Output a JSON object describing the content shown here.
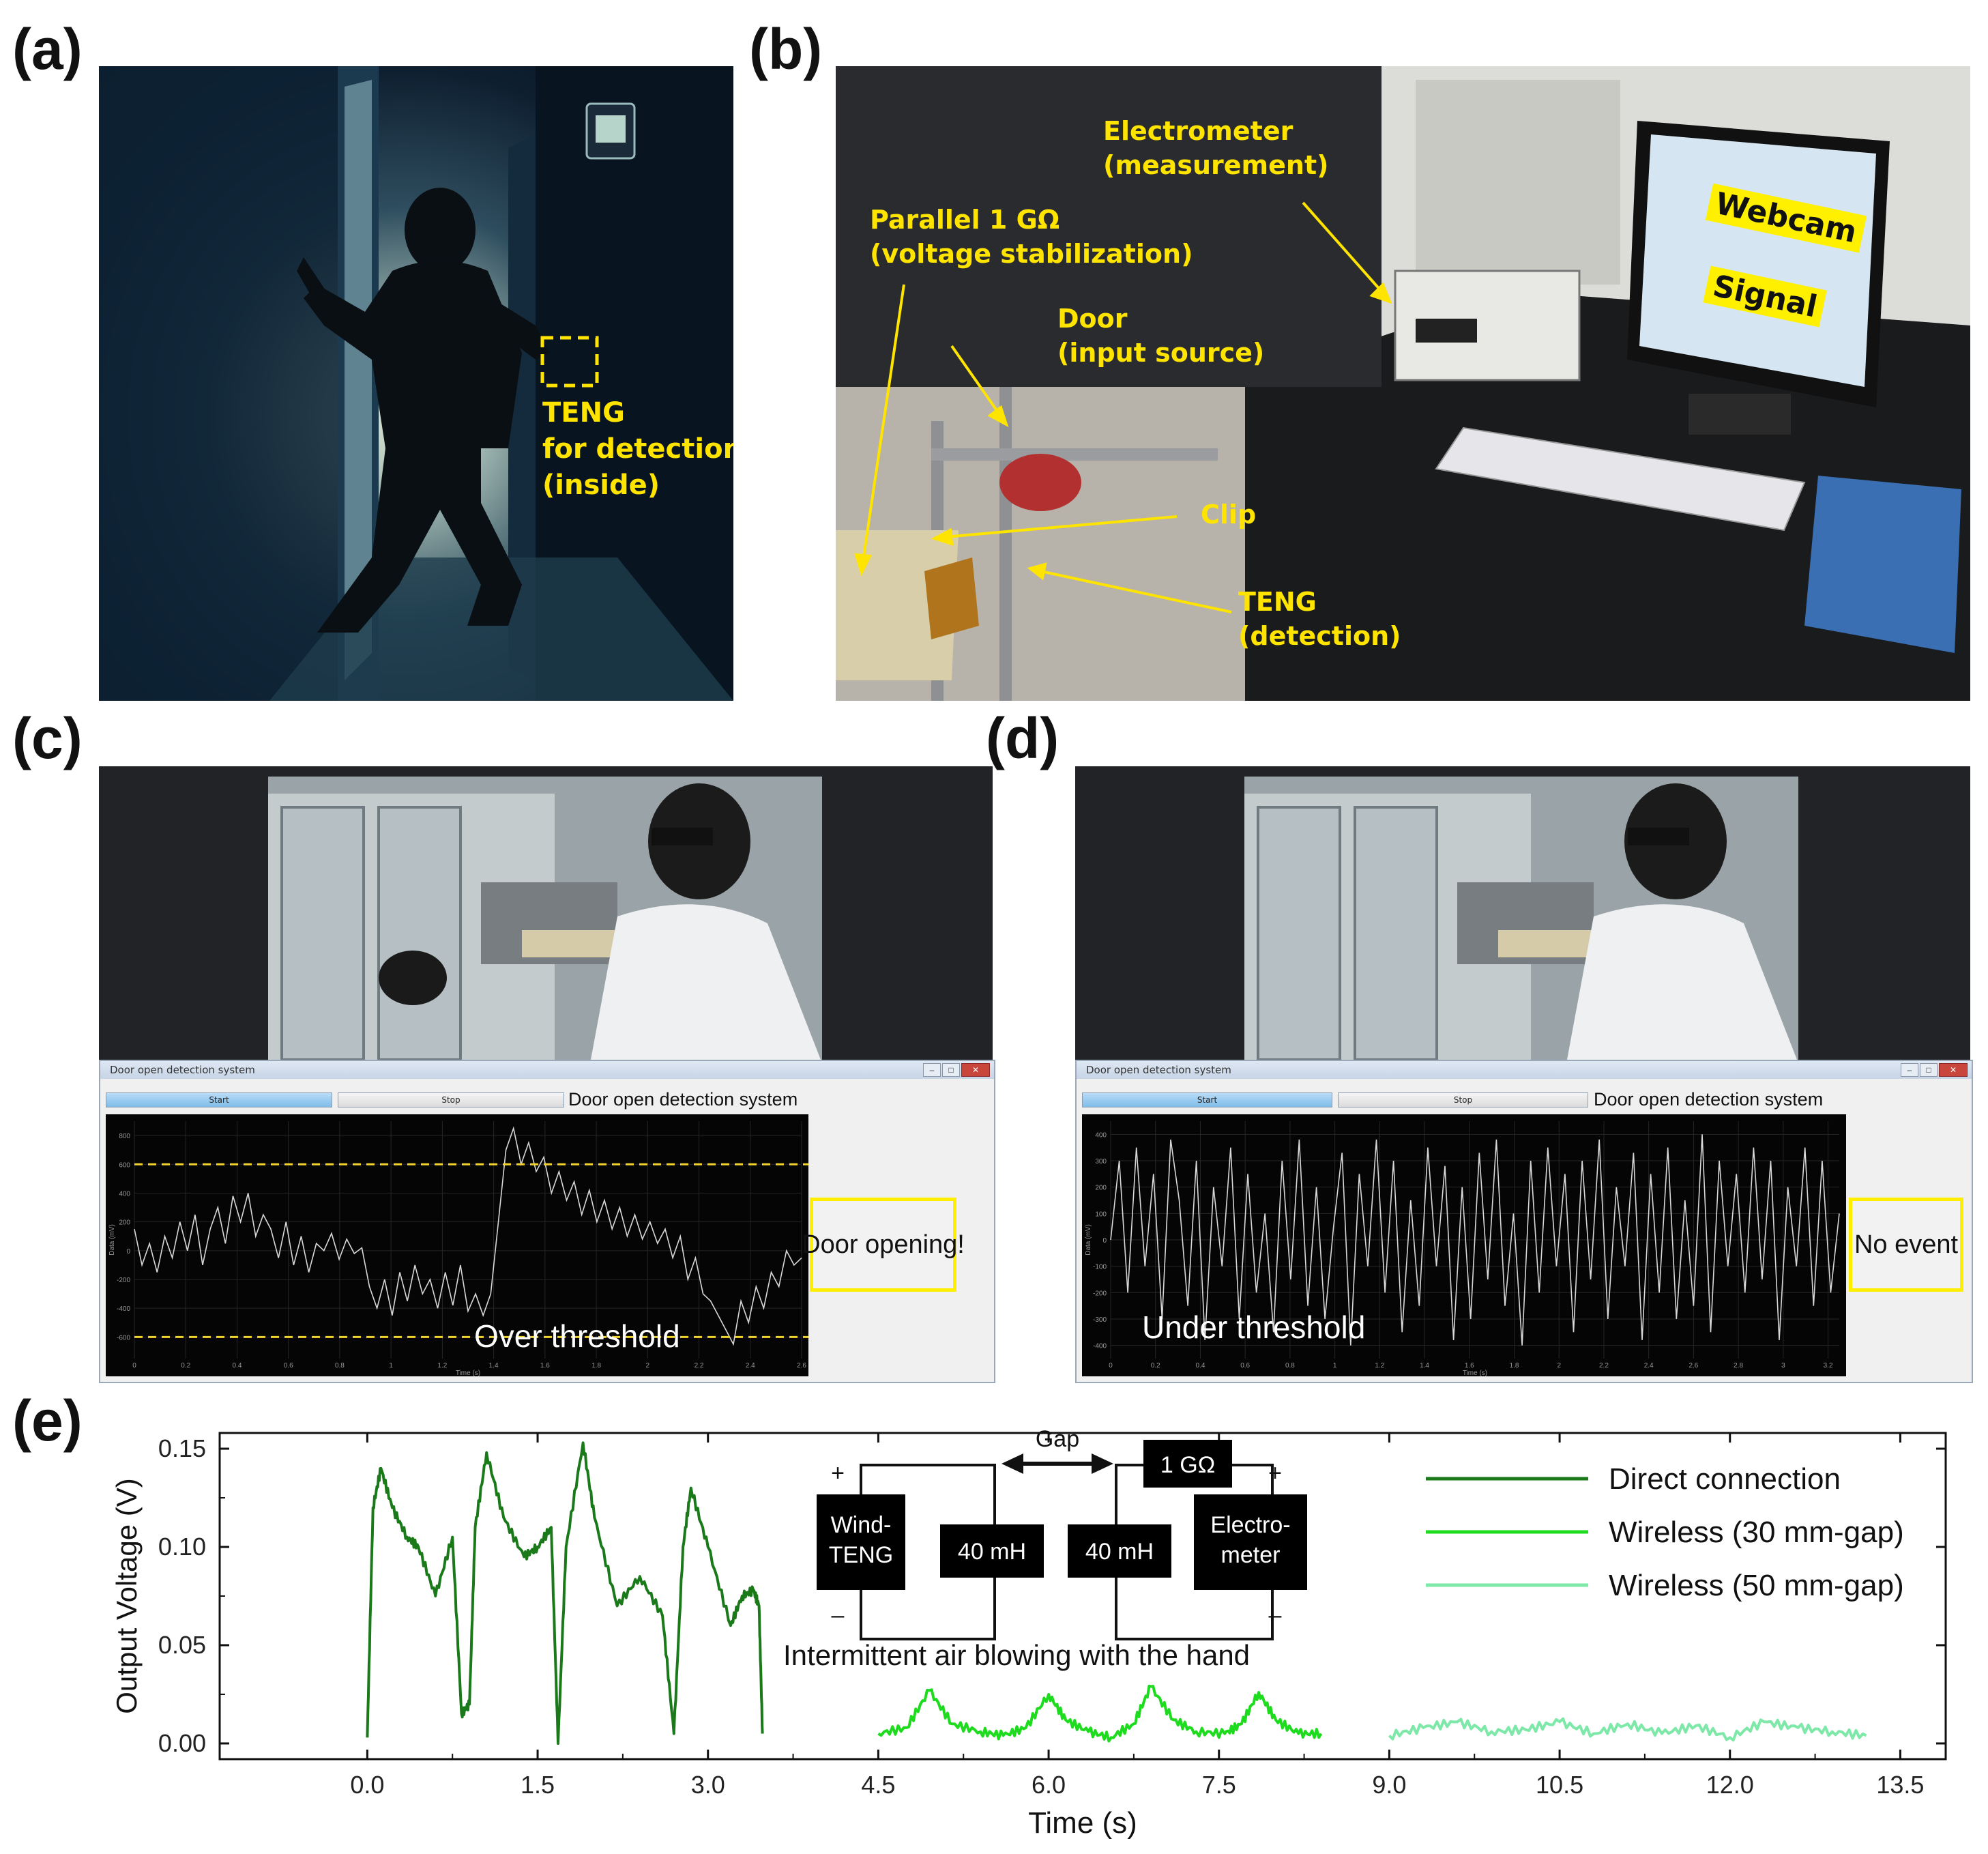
{
  "panel_labels": {
    "a": "(a)",
    "b": "(b)",
    "c": "(c)",
    "d": "(d)",
    "e": "(e)"
  },
  "panel_a": {
    "annotation_lines": [
      "TENG",
      "for detection",
      "(inside)"
    ],
    "annotation_color": "#ffe400"
  },
  "panel_b": {
    "electrometer": [
      "Electrometer",
      "(measurement)"
    ],
    "resistor": [
      "Parallel 1 GΩ",
      "(voltage stabilization)"
    ],
    "door": [
      "Door",
      "(input source)"
    ],
    "clip": "Clip",
    "teng": [
      "TENG",
      "(detection)"
    ],
    "screen_labels": {
      "webcam": "Webcam",
      "signal": "Signal"
    },
    "label_color": "#ffe400"
  },
  "panel_c": {
    "window_title": "Door open detection system",
    "window_buttons": [
      "–",
      "□",
      "✕"
    ],
    "start_label": "Start",
    "stop_label": "Stop",
    "app_title": "Door open detection system",
    "status": "Door opening!",
    "threshold_text": "Over threshold",
    "y_axis_label": "Data (mV)",
    "x_axis_label": "Time (s)",
    "x_ticks": [
      "0",
      "0.2",
      "0.4",
      "0.6",
      "0.8",
      "1",
      "1.2",
      "1.4",
      "1.6",
      "1.8",
      "2",
      "2.2",
      "2.4",
      "2.6"
    ],
    "y_ticks": [
      "800",
      "600",
      "400",
      "200",
      "0",
      "-200",
      "-400",
      "-600"
    ],
    "threshold_mv": [
      600,
      -600
    ],
    "signal_mv": [
      150,
      -100,
      50,
      -150,
      100,
      -50,
      200,
      0,
      250,
      -100,
      150,
      300,
      50,
      380,
      200,
      400,
      100,
      250,
      150,
      -50,
      200,
      -100,
      100,
      -150,
      50,
      0,
      120,
      -60,
      80,
      -20,
      20,
      -250,
      -400,
      -200,
      -450,
      -150,
      -350,
      -100,
      -300,
      -200,
      -400,
      -150,
      -380,
      -100,
      -420,
      -300,
      -450,
      -300,
      200,
      700,
      850,
      600,
      750,
      550,
      650,
      400,
      550,
      350,
      480,
      250,
      420,
      200,
      350,
      150,
      300,
      100,
      250,
      80,
      200,
      50,
      150,
      -50,
      100,
      -200,
      -50,
      -300,
      -350,
      -450,
      -550,
      -650,
      -350,
      -500,
      -250,
      -400,
      -150,
      -250,
      0,
      -100,
      -50
    ]
  },
  "panel_d": {
    "window_title": "Door open detection system",
    "window_buttons": [
      "–",
      "□",
      "✕"
    ],
    "start_label": "Start",
    "stop_label": "Stop",
    "app_title": "Door open detection system",
    "status": "No event",
    "threshold_text": "Under threshold",
    "y_axis_label": "Data (mV)",
    "x_axis_label": "Time (s)",
    "x_ticks": [
      "0",
      "0.2",
      "0.4",
      "0.6",
      "0.8",
      "1",
      "1.2",
      "1.4",
      "1.6",
      "1.8",
      "2",
      "2.2",
      "2.4",
      "2.6",
      "2.8",
      "3",
      "3.2"
    ],
    "y_ticks": [
      "400",
      "300",
      "200",
      "100",
      "0",
      "-100",
      "-200",
      "-300",
      "-400"
    ],
    "signal_mv": [
      0,
      300,
      -200,
      350,
      -100,
      250,
      -300,
      380,
      150,
      -250,
      300,
      -380,
      200,
      -100,
      350,
      -300,
      250,
      -200,
      100,
      -350,
      300,
      -150,
      380,
      -250,
      200,
      -300,
      50,
      330,
      -400,
      250,
      -100,
      380,
      -200,
      300,
      -350,
      150,
      -250,
      350,
      -100,
      280,
      -380,
      200,
      -300,
      330,
      -150,
      380,
      -250,
      100,
      -400,
      300,
      -200,
      350,
      -100,
      250,
      -350,
      300,
      -150,
      380,
      -300,
      200,
      -100,
      330,
      -380,
      250,
      -200,
      350,
      -300,
      150,
      -250,
      400,
      -350,
      300,
      -100,
      250,
      -200,
      350,
      -150,
      300,
      -380,
      200,
      -100,
      350,
      -250,
      300,
      -200,
      100
    ]
  },
  "chart_data": {
    "type": "line",
    "xlabel": "Time (s)",
    "ylabel": "Output Voltage (V)",
    "xlim": [
      -1.3,
      13.9
    ],
    "ylim": [
      -0.008,
      0.158
    ],
    "x_ticks": [
      "0.0",
      "1.5",
      "3.0",
      "4.5",
      "6.0",
      "7.5",
      "9.0",
      "10.5",
      "12.0",
      "13.5"
    ],
    "y_ticks": [
      "0.00",
      "0.05",
      "0.10",
      "0.15"
    ],
    "legend_position": "top-right",
    "series": [
      {
        "name": "Direct connection",
        "color": "#1a7a1a",
        "points": [
          [
            0,
            0.003
          ],
          [
            0.05,
            0.12
          ],
          [
            0.12,
            0.14
          ],
          [
            0.22,
            0.12
          ],
          [
            0.35,
            0.105
          ],
          [
            0.45,
            0.1
          ],
          [
            0.6,
            0.075
          ],
          [
            0.75,
            0.105
          ],
          [
            0.83,
            0.015
          ],
          [
            0.9,
            0.02
          ],
          [
            0.95,
            0.11
          ],
          [
            1.05,
            0.148
          ],
          [
            1.2,
            0.115
          ],
          [
            1.38,
            0.095
          ],
          [
            1.5,
            0.1
          ],
          [
            1.62,
            0.11
          ],
          [
            1.68,
            0.0
          ],
          [
            1.75,
            0.1
          ],
          [
            1.9,
            0.153
          ],
          [
            2.0,
            0.115
          ],
          [
            2.2,
            0.07
          ],
          [
            2.4,
            0.085
          ],
          [
            2.6,
            0.065
          ],
          [
            2.7,
            0.005
          ],
          [
            2.78,
            0.1
          ],
          [
            2.85,
            0.13
          ],
          [
            3.0,
            0.1
          ],
          [
            3.2,
            0.06
          ],
          [
            3.3,
            0.075
          ],
          [
            3.4,
            0.078
          ],
          [
            3.45,
            0.07
          ],
          [
            3.48,
            0.005
          ]
        ]
      },
      {
        "name": "Wireless (30 mm-gap)",
        "color": "#1ddb1d",
        "points": [
          [
            4.5,
            0.005
          ],
          [
            4.75,
            0.008
          ],
          [
            4.95,
            0.027
          ],
          [
            5.15,
            0.01
          ],
          [
            5.4,
            0.006
          ],
          [
            5.6,
            0.004
          ],
          [
            5.8,
            0.008
          ],
          [
            6.0,
            0.025
          ],
          [
            6.15,
            0.012
          ],
          [
            6.35,
            0.006
          ],
          [
            6.55,
            0.003
          ],
          [
            6.75,
            0.01
          ],
          [
            6.9,
            0.029
          ],
          [
            7.1,
            0.012
          ],
          [
            7.3,
            0.006
          ],
          [
            7.55,
            0.005
          ],
          [
            7.7,
            0.01
          ],
          [
            7.85,
            0.026
          ],
          [
            8.0,
            0.012
          ],
          [
            8.2,
            0.005
          ],
          [
            8.4,
            0.005
          ]
        ]
      },
      {
        "name": "Wireless (50 mm-gap)",
        "color": "#7de8a8",
        "points": [
          [
            9.0,
            0.004
          ],
          [
            9.3,
            0.008
          ],
          [
            9.6,
            0.011
          ],
          [
            9.9,
            0.006
          ],
          [
            10.2,
            0.007
          ],
          [
            10.5,
            0.011
          ],
          [
            10.8,
            0.005
          ],
          [
            11.1,
            0.01
          ],
          [
            11.4,
            0.005
          ],
          [
            11.7,
            0.009
          ],
          [
            12.0,
            0.003
          ],
          [
            12.3,
            0.011
          ],
          [
            12.6,
            0.008
          ],
          [
            12.9,
            0.006
          ],
          [
            13.2,
            0.004
          ]
        ]
      }
    ],
    "annotation": "Intermittent air blowing with the hand",
    "circuit": {
      "source": [
        "Wind-",
        "TENG"
      ],
      "inductor_left": "40 mH",
      "inductor_right": "40 mH",
      "resistor": "1 GΩ",
      "meter": [
        "Electro-",
        "meter"
      ],
      "gap": "Gap",
      "plus": "+",
      "minus": "–"
    }
  }
}
